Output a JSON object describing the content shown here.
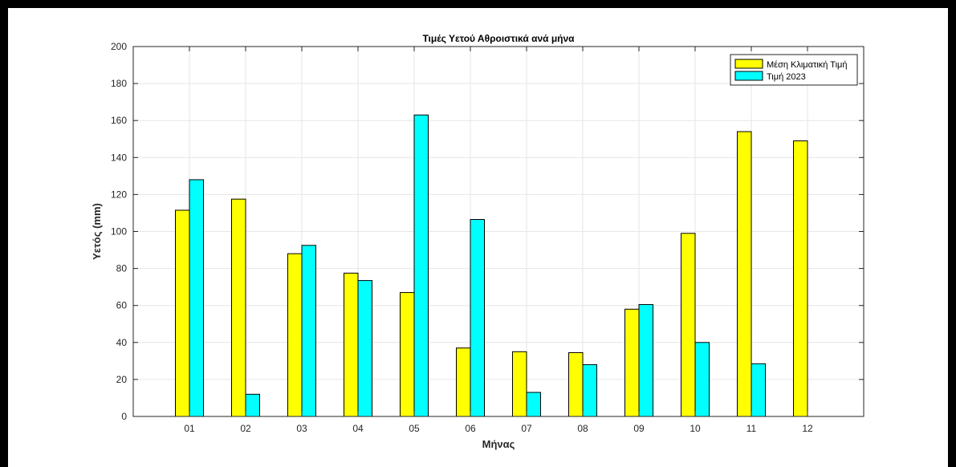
{
  "chart_data": {
    "type": "bar",
    "title": "Τιμές Υετού Αθροιστικά ανά μήνα",
    "xlabel": "Μήνας",
    "ylabel": "Υετός (mm)",
    "categories": [
      "01",
      "02",
      "03",
      "04",
      "05",
      "06",
      "07",
      "08",
      "09",
      "10",
      "11",
      "12"
    ],
    "ylim": [
      0,
      200
    ],
    "yticks": [
      0,
      20,
      40,
      60,
      80,
      100,
      120,
      140,
      160,
      180,
      200
    ],
    "grid": true,
    "legend_position": "top-right",
    "series": [
      {
        "name": "Μέση Κλιματική Τιμή",
        "color": "#ffff00",
        "values": [
          111.5,
          117.5,
          88,
          77.5,
          67,
          37,
          35,
          34.5,
          58,
          99,
          154,
          149
        ]
      },
      {
        "name": "Τιμή 2023",
        "color": "#00ffff",
        "values": [
          128,
          12,
          92.5,
          73.5,
          163,
          106.5,
          13,
          28,
          60.5,
          40,
          28.5,
          null
        ]
      }
    ]
  }
}
